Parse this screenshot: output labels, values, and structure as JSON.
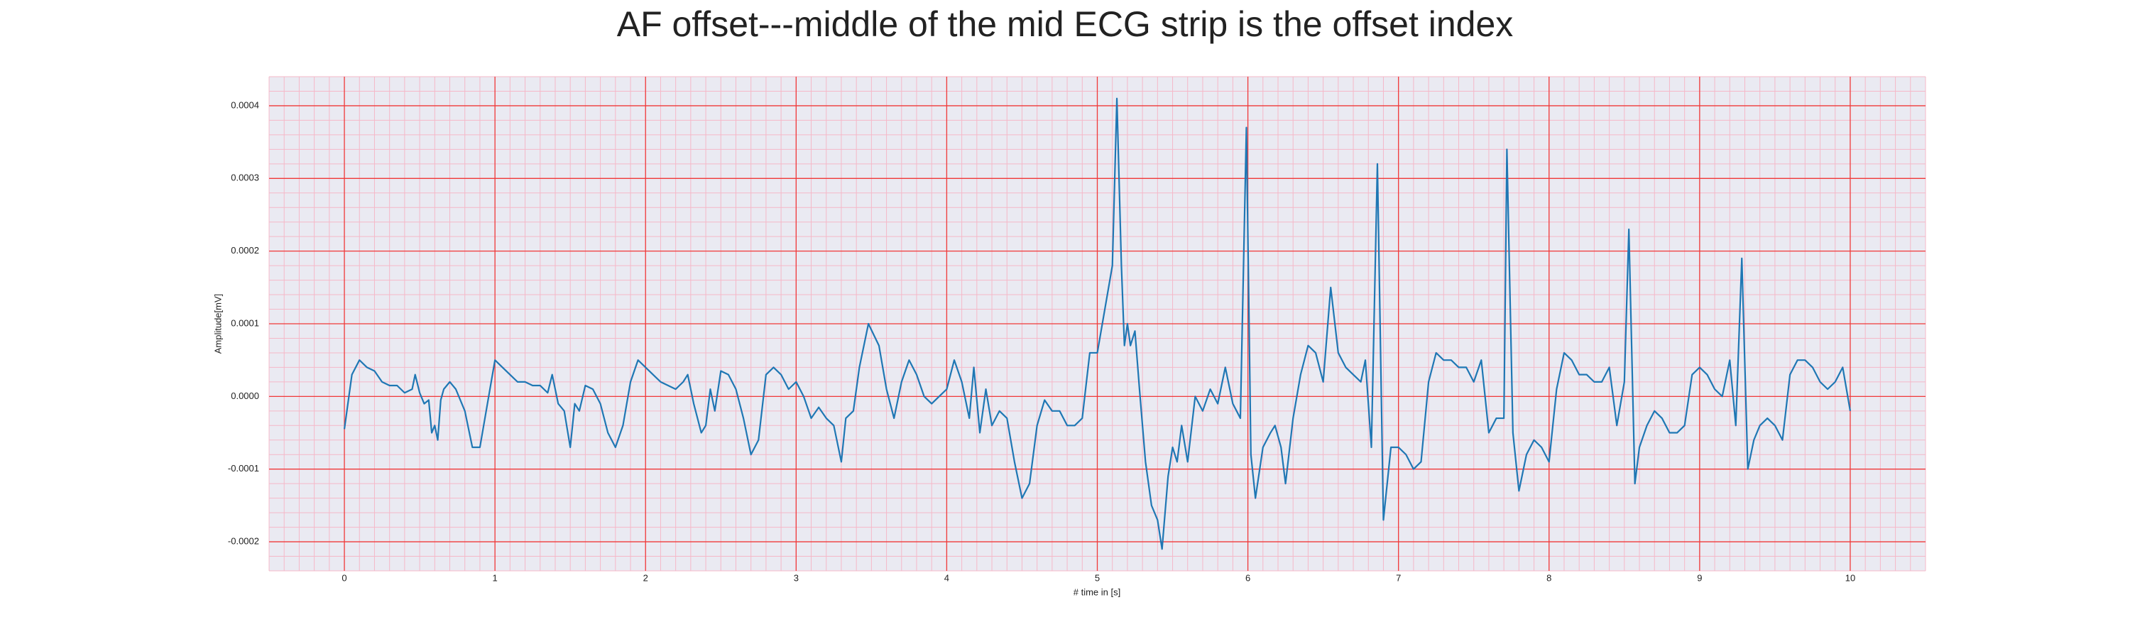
{
  "chart_data": {
    "type": "line",
    "title": "AF offset---middle of the mid ECG strip is the offset index",
    "xlabel": "# time in [s]",
    "ylabel": "Amplitude[mV]",
    "xlim": [
      -0.5,
      10.5
    ],
    "ylim": [
      -0.00024,
      0.00044
    ],
    "xticks": [
      0,
      1,
      2,
      3,
      4,
      5,
      6,
      7,
      8,
      9,
      10
    ],
    "yticks": [
      -0.0002,
      -0.0001,
      {
        "value": 0,
        "label": "0.0000"
      },
      0.0001,
      0.0002,
      0.0003,
      0.0004
    ],
    "grid": true,
    "grid_color": "#f03a3a",
    "minor_grid_color": "#f5b8c8",
    "background": "#eaeaf2",
    "minor_grid": {
      "x": 0.1,
      "y": 2e-05
    },
    "x": [
      0,
      0.05,
      0.1,
      0.15,
      0.2,
      0.25,
      0.3,
      0.35,
      0.4,
      0.45,
      0.47,
      0.5,
      0.53,
      0.56,
      0.58,
      0.6,
      0.62,
      0.64,
      0.66,
      0.7,
      0.74,
      0.8,
      0.85,
      0.9,
      0.95,
      1.0,
      1.05,
      1.1,
      1.15,
      1.2,
      1.25,
      1.3,
      1.35,
      1.38,
      1.42,
      1.46,
      1.5,
      1.53,
      1.56,
      1.6,
      1.65,
      1.7,
      1.75,
      1.8,
      1.85,
      1.9,
      1.95,
      2.0,
      2.05,
      2.1,
      2.15,
      2.2,
      2.25,
      2.28,
      2.32,
      2.37,
      2.4,
      2.43,
      2.46,
      2.5,
      2.55,
      2.6,
      2.65,
      2.7,
      2.75,
      2.8,
      2.85,
      2.9,
      2.95,
      3.0,
      3.05,
      3.1,
      3.15,
      3.2,
      3.25,
      3.3,
      3.33,
      3.38,
      3.42,
      3.48,
      3.55,
      3.6,
      3.65,
      3.7,
      3.75,
      3.8,
      3.85,
      3.9,
      3.95,
      4.0,
      4.05,
      4.1,
      4.15,
      4.18,
      4.22,
      4.26,
      4.3,
      4.35,
      4.4,
      4.45,
      4.5,
      4.55,
      4.6,
      4.65,
      4.7,
      4.75,
      4.8,
      4.85,
      4.9,
      4.95,
      5.0,
      5.05,
      5.1,
      5.13,
      5.16,
      5.18,
      5.2,
      5.22,
      5.25,
      5.28,
      5.32,
      5.36,
      5.4,
      5.43,
      5.47,
      5.5,
      5.53,
      5.56,
      5.6,
      5.65,
      5.7,
      5.75,
      5.8,
      5.85,
      5.9,
      5.95,
      5.99,
      6.02,
      6.05,
      6.1,
      6.15,
      6.18,
      6.22,
      6.25,
      6.3,
      6.35,
      6.4,
      6.45,
      6.5,
      6.55,
      6.6,
      6.65,
      6.7,
      6.75,
      6.78,
      6.82,
      6.86,
      6.9,
      6.95,
      7.0,
      7.05,
      7.1,
      7.15,
      7.2,
      7.25,
      7.3,
      7.35,
      7.4,
      7.45,
      7.5,
      7.55,
      7.6,
      7.65,
      7.7,
      7.72,
      7.76,
      7.8,
      7.85,
      7.9,
      7.95,
      8.0,
      8.05,
      8.1,
      8.15,
      8.2,
      8.25,
      8.3,
      8.35,
      8.4,
      8.45,
      8.5,
      8.53,
      8.57,
      8.6,
      8.65,
      8.7,
      8.75,
      8.8,
      8.85,
      8.9,
      8.95,
      9.0,
      9.05,
      9.1,
      9.15,
      9.2,
      9.24,
      9.28,
      9.32,
      9.36,
      9.4,
      9.45,
      9.5,
      9.55,
      9.6,
      9.65,
      9.7,
      9.75,
      9.8,
      9.85,
      9.9,
      9.95,
      10.0
    ],
    "series": [
      {
        "name": "ECG",
        "color": "#1f77b4",
        "values": [
          -4.5e-05,
          3e-05,
          5e-05,
          4e-05,
          3.5e-05,
          2e-05,
          1.5e-05,
          1.5e-05,
          5e-06,
          1e-05,
          3e-05,
          5e-06,
          -1e-05,
          -5e-06,
          -5e-05,
          -4e-05,
          -6e-05,
          -5e-06,
          1e-05,
          2e-05,
          1e-05,
          -2e-05,
          -7e-05,
          -7e-05,
          -1e-05,
          5e-05,
          4e-05,
          3e-05,
          2e-05,
          2e-05,
          1.5e-05,
          1.5e-05,
          5e-06,
          3e-05,
          -1e-05,
          -2e-05,
          -7e-05,
          -1e-05,
          -2e-05,
          1.5e-05,
          1e-05,
          -1e-05,
          -5e-05,
          -7e-05,
          -4e-05,
          2e-05,
          5e-05,
          4e-05,
          3e-05,
          2e-05,
          1.5e-05,
          1e-05,
          2e-05,
          3e-05,
          -1e-05,
          -5e-05,
          -4e-05,
          1e-05,
          -2e-05,
          3.5e-05,
          3e-05,
          1e-05,
          -3e-05,
          -8e-05,
          -6e-05,
          3e-05,
          4e-05,
          3e-05,
          1e-05,
          2e-05,
          0,
          -3e-05,
          -1.5e-05,
          -3e-05,
          -4e-05,
          -9e-05,
          -3e-05,
          -2e-05,
          4e-05,
          0.0001,
          7e-05,
          1e-05,
          -3e-05,
          2e-05,
          5e-05,
          3e-05,
          0,
          -1e-05,
          0,
          1e-05,
          5e-05,
          2e-05,
          -3e-05,
          4e-05,
          -5e-05,
          1e-05,
          -4e-05,
          -2e-05,
          -3e-05,
          -9e-05,
          -0.00014,
          -0.00012,
          -4e-05,
          -5e-06,
          -2e-05,
          -2e-05,
          -4e-05,
          -4e-05,
          -3e-05,
          6e-05,
          6e-05,
          0.00012,
          0.00018,
          0.00041,
          0.00018,
          7e-05,
          0.0001,
          7e-05,
          9e-05,
          1e-05,
          -9e-05,
          -0.00015,
          -0.00017,
          -0.00021,
          -0.00011,
          -7e-05,
          -9e-05,
          -4e-05,
          -9e-05,
          0,
          -2e-05,
          1e-05,
          -1e-05,
          4e-05,
          -1e-05,
          -3e-05,
          0.00037,
          -8e-05,
          -0.00014,
          -7e-05,
          -5e-05,
          -4e-05,
          -7e-05,
          -0.00012,
          -3e-05,
          3e-05,
          7e-05,
          6e-05,
          2e-05,
          0.00015,
          6e-05,
          4e-05,
          3e-05,
          2e-05,
          5e-05,
          -7e-05,
          0.00032,
          -0.00017,
          -7e-05,
          -7e-05,
          -8e-05,
          -0.0001,
          -9e-05,
          2e-05,
          6e-05,
          5e-05,
          5e-05,
          4e-05,
          4e-05,
          2e-05,
          5e-05,
          -5e-05,
          -3e-05,
          -3e-05,
          0.00034,
          -5e-05,
          -0.00013,
          -8e-05,
          -6e-05,
          -7e-05,
          -9e-05,
          1e-05,
          6e-05,
          5e-05,
          3e-05,
          3e-05,
          2e-05,
          2e-05,
          4e-05,
          -4e-05,
          2e-05,
          0.00023,
          -0.00012,
          -7e-05,
          -4e-05,
          -2e-05,
          -3e-05,
          -5e-05,
          -5e-05,
          -4e-05,
          3e-05,
          4e-05,
          3e-05,
          1e-05,
          0,
          5e-05,
          -4e-05,
          0.00019,
          -0.0001,
          -6e-05,
          -4e-05,
          -3e-05,
          -4e-05,
          -6e-05,
          3e-05,
          5e-05,
          5e-05,
          4e-05,
          2e-05,
          1e-05,
          2e-05,
          4e-05,
          -2e-05
        ]
      }
    ]
  }
}
